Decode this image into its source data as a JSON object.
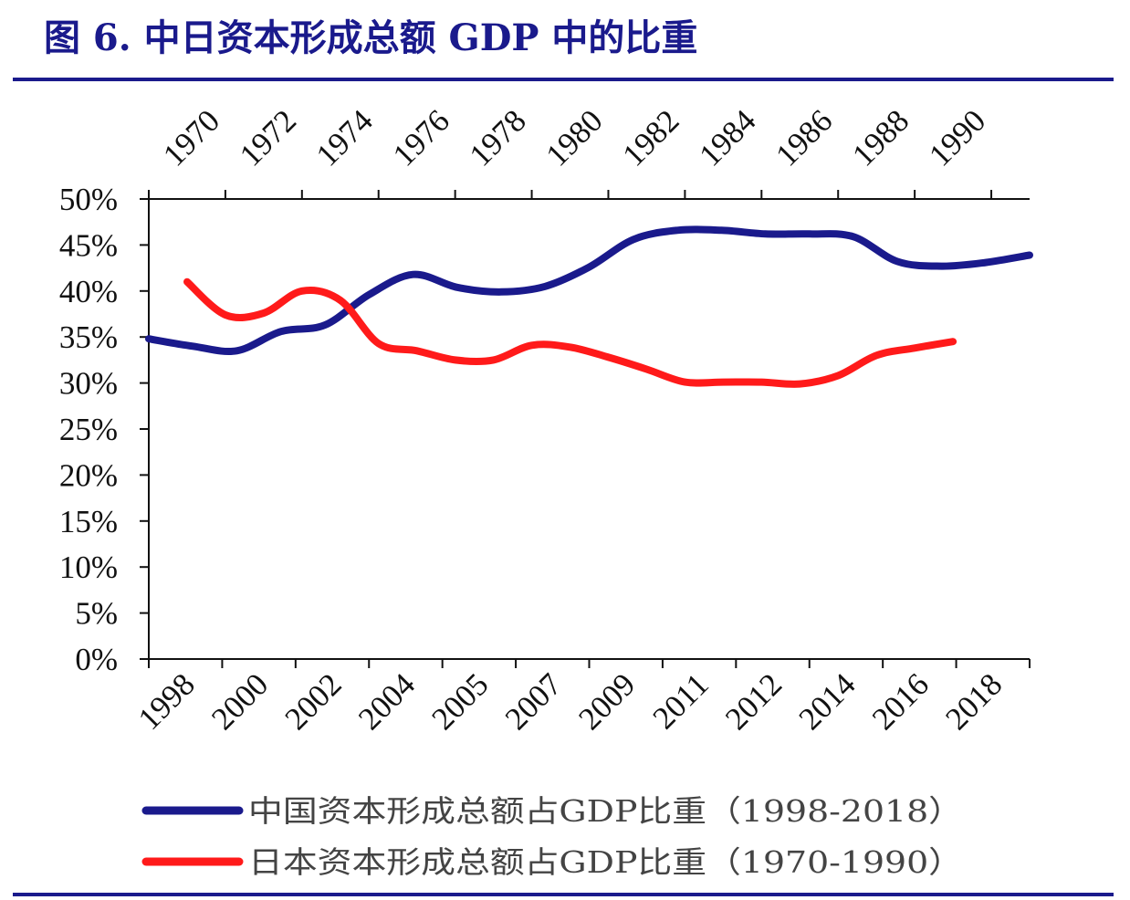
{
  "header": {
    "title": "图 6. 中日资本形成总额 GDP 中的比重"
  },
  "chart_data": {
    "type": "line",
    "title": "图 6. 中日资本形成总额 GDP 中的比重",
    "ylim": [
      0,
      50
    ],
    "y_ticks": [
      "0%",
      "5%",
      "10%",
      "15%",
      "20%",
      "25%",
      "30%",
      "35%",
      "40%",
      "45%",
      "50%"
    ],
    "x_bottom_ticks": [
      "1998",
      "2000",
      "2002",
      "2004",
      "2005",
      "2007",
      "2009",
      "2011",
      "2012",
      "2014",
      "2016",
      "2018"
    ],
    "x_top_ticks": [
      "1970",
      "1972",
      "1974",
      "1976",
      "1978",
      "1980",
      "1982",
      "1984",
      "1986",
      "1988",
      "1990"
    ],
    "grid": false,
    "legend_position": "bottom",
    "colors": {
      "china": "#1a1a8c",
      "japan": "#ff1a1a"
    },
    "series": [
      {
        "name": "中国资本形成总额占GDP比重（1998-2018）",
        "axis": "bottom",
        "x": [
          "1998",
          "1999",
          "2000",
          "2001",
          "2002",
          "2003",
          "2004",
          "2005",
          "2006",
          "2007",
          "2008",
          "2009",
          "2010",
          "2011",
          "2012",
          "2013",
          "2014",
          "2015",
          "2016",
          "2017",
          "2018"
        ],
        "values": [
          34.8,
          34.0,
          33.5,
          35.6,
          36.3,
          39.6,
          41.8,
          40.4,
          39.9,
          40.5,
          42.6,
          45.6,
          46.6,
          46.6,
          46.2,
          46.2,
          45.9,
          43.2,
          42.7,
          43.1,
          43.9
        ]
      },
      {
        "name": "日本资本形成总额占GDP比重（1970-1990）",
        "axis": "top",
        "x": [
          "1970",
          "1971",
          "1972",
          "1973",
          "1974",
          "1975",
          "1976",
          "1977",
          "1978",
          "1979",
          "1980",
          "1981",
          "1982",
          "1983",
          "1984",
          "1985",
          "1986",
          "1987",
          "1988",
          "1989",
          "1990"
        ],
        "values": [
          41.0,
          37.4,
          37.6,
          40.0,
          39.0,
          34.3,
          33.5,
          32.5,
          32.5,
          34.1,
          33.9,
          32.8,
          31.5,
          30.1,
          30.1,
          30.1,
          29.9,
          30.8,
          33.0,
          33.8,
          34.5
        ]
      }
    ]
  }
}
